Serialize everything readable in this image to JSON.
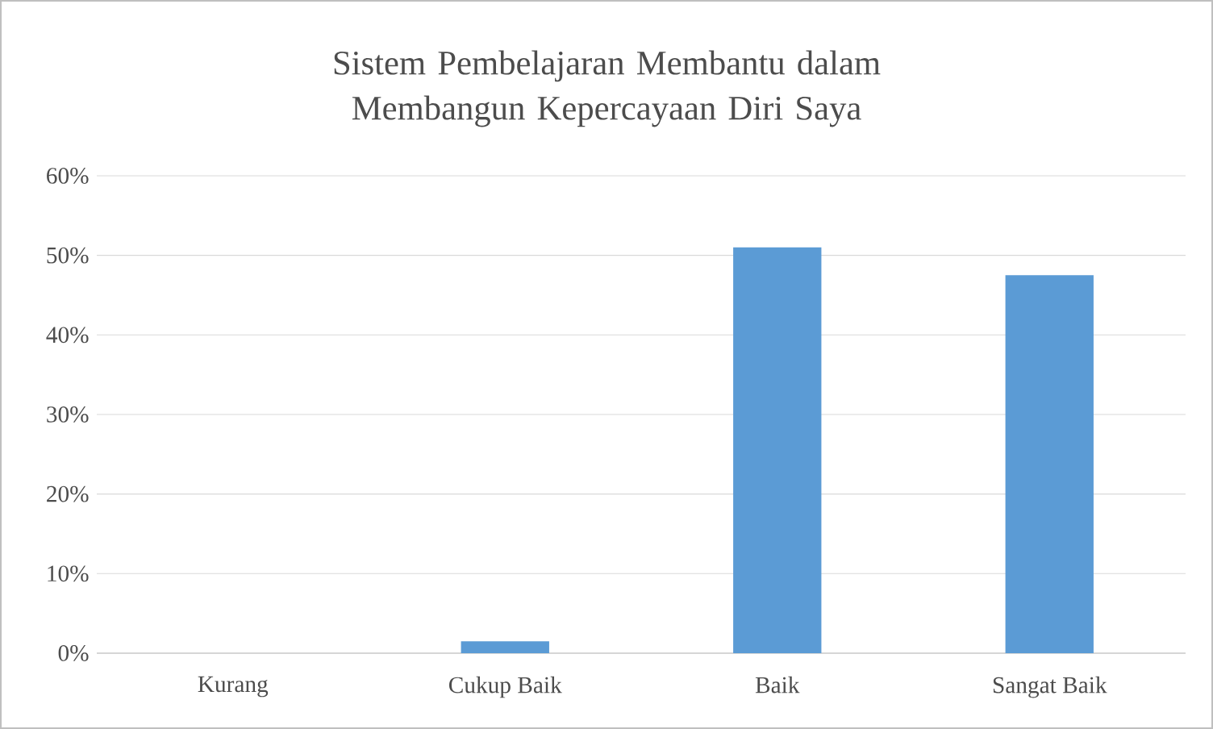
{
  "chart_data": {
    "type": "bar",
    "title": "Sistem Pembelajaran Membantu dalam Membangun Kepercayaan Diri Saya",
    "categories": [
      "Kurang",
      "Cukup Baik",
      "Baik",
      "Sangat Baik"
    ],
    "values": [
      0,
      1.5,
      51,
      47.5
    ],
    "color": "#5b9bd5",
    "ylim": [
      0,
      60
    ],
    "yticks": [
      {
        "value": 0,
        "label": "0%"
      },
      {
        "value": 10,
        "label": "10%"
      },
      {
        "value": 20,
        "label": "20%"
      },
      {
        "value": 30,
        "label": "30%"
      },
      {
        "value": 40,
        "label": "40%"
      },
      {
        "value": 50,
        "label": "50%"
      },
      {
        "value": 60,
        "label": "60%"
      }
    ],
    "grid": "y"
  }
}
